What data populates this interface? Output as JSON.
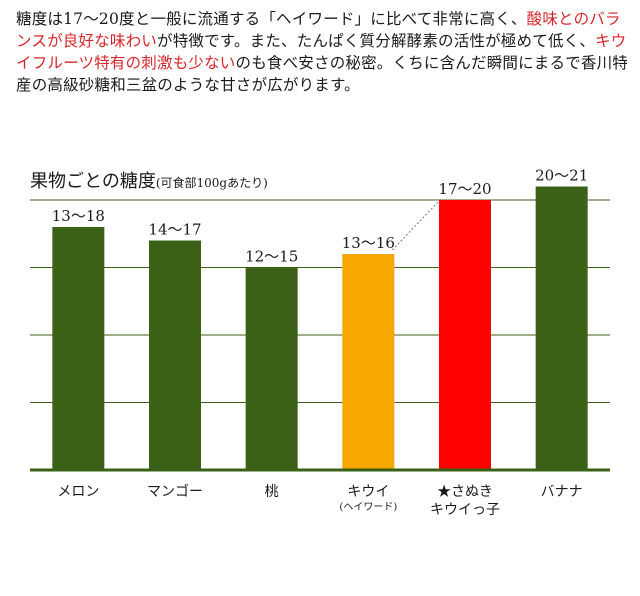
{
  "intro": {
    "p1": "糖度は17〜20度と一般に流通する「ヘイワード」に比べて非常に高く、",
    "p2_highlight": "酸味とのバランスが良好な味わい",
    "p3": "が特徴です。また、たんぱく質分解酵素の活性が極めて低く、",
    "p4_highlight": "キウイフルーツ特有の刺激も少ない",
    "p5": "のも食べ安さの秘密。くちに含んだ瞬間にまるで香川特産の高級砂糖和三盆のような甘さが広がります。"
  },
  "chart_data": {
    "type": "bar",
    "title": "果物ごとの糖度",
    "subtitle": "(可食部100gあたり)",
    "ylim": [
      0,
      22
    ],
    "grid": true,
    "categories": [
      {
        "label": "メロン",
        "sub": "",
        "range_label": "13〜18",
        "value": 18,
        "color": "#3a6116"
      },
      {
        "label": "マンゴー",
        "sub": "",
        "range_label": "14〜17",
        "value": 17,
        "color": "#3a6116"
      },
      {
        "label": "桃",
        "sub": "",
        "range_label": "12〜15",
        "value": 15,
        "color": "#3a6116"
      },
      {
        "label": "キウイ",
        "sub": "(ヘイワード)",
        "range_label": "13〜16",
        "value": 16,
        "color": "#f6a800"
      },
      {
        "label": "★さぬき",
        "sub": "キウイっ子",
        "range_label": "17〜20",
        "value": 20,
        "color": "#ff0000"
      },
      {
        "label": "バナナ",
        "sub": "",
        "range_label": "20〜21",
        "value": 21,
        "color": "#3a6116"
      }
    ],
    "gridline_color": "#3a6116",
    "axis_color": "#3a6116",
    "connector_color": "#777777"
  }
}
